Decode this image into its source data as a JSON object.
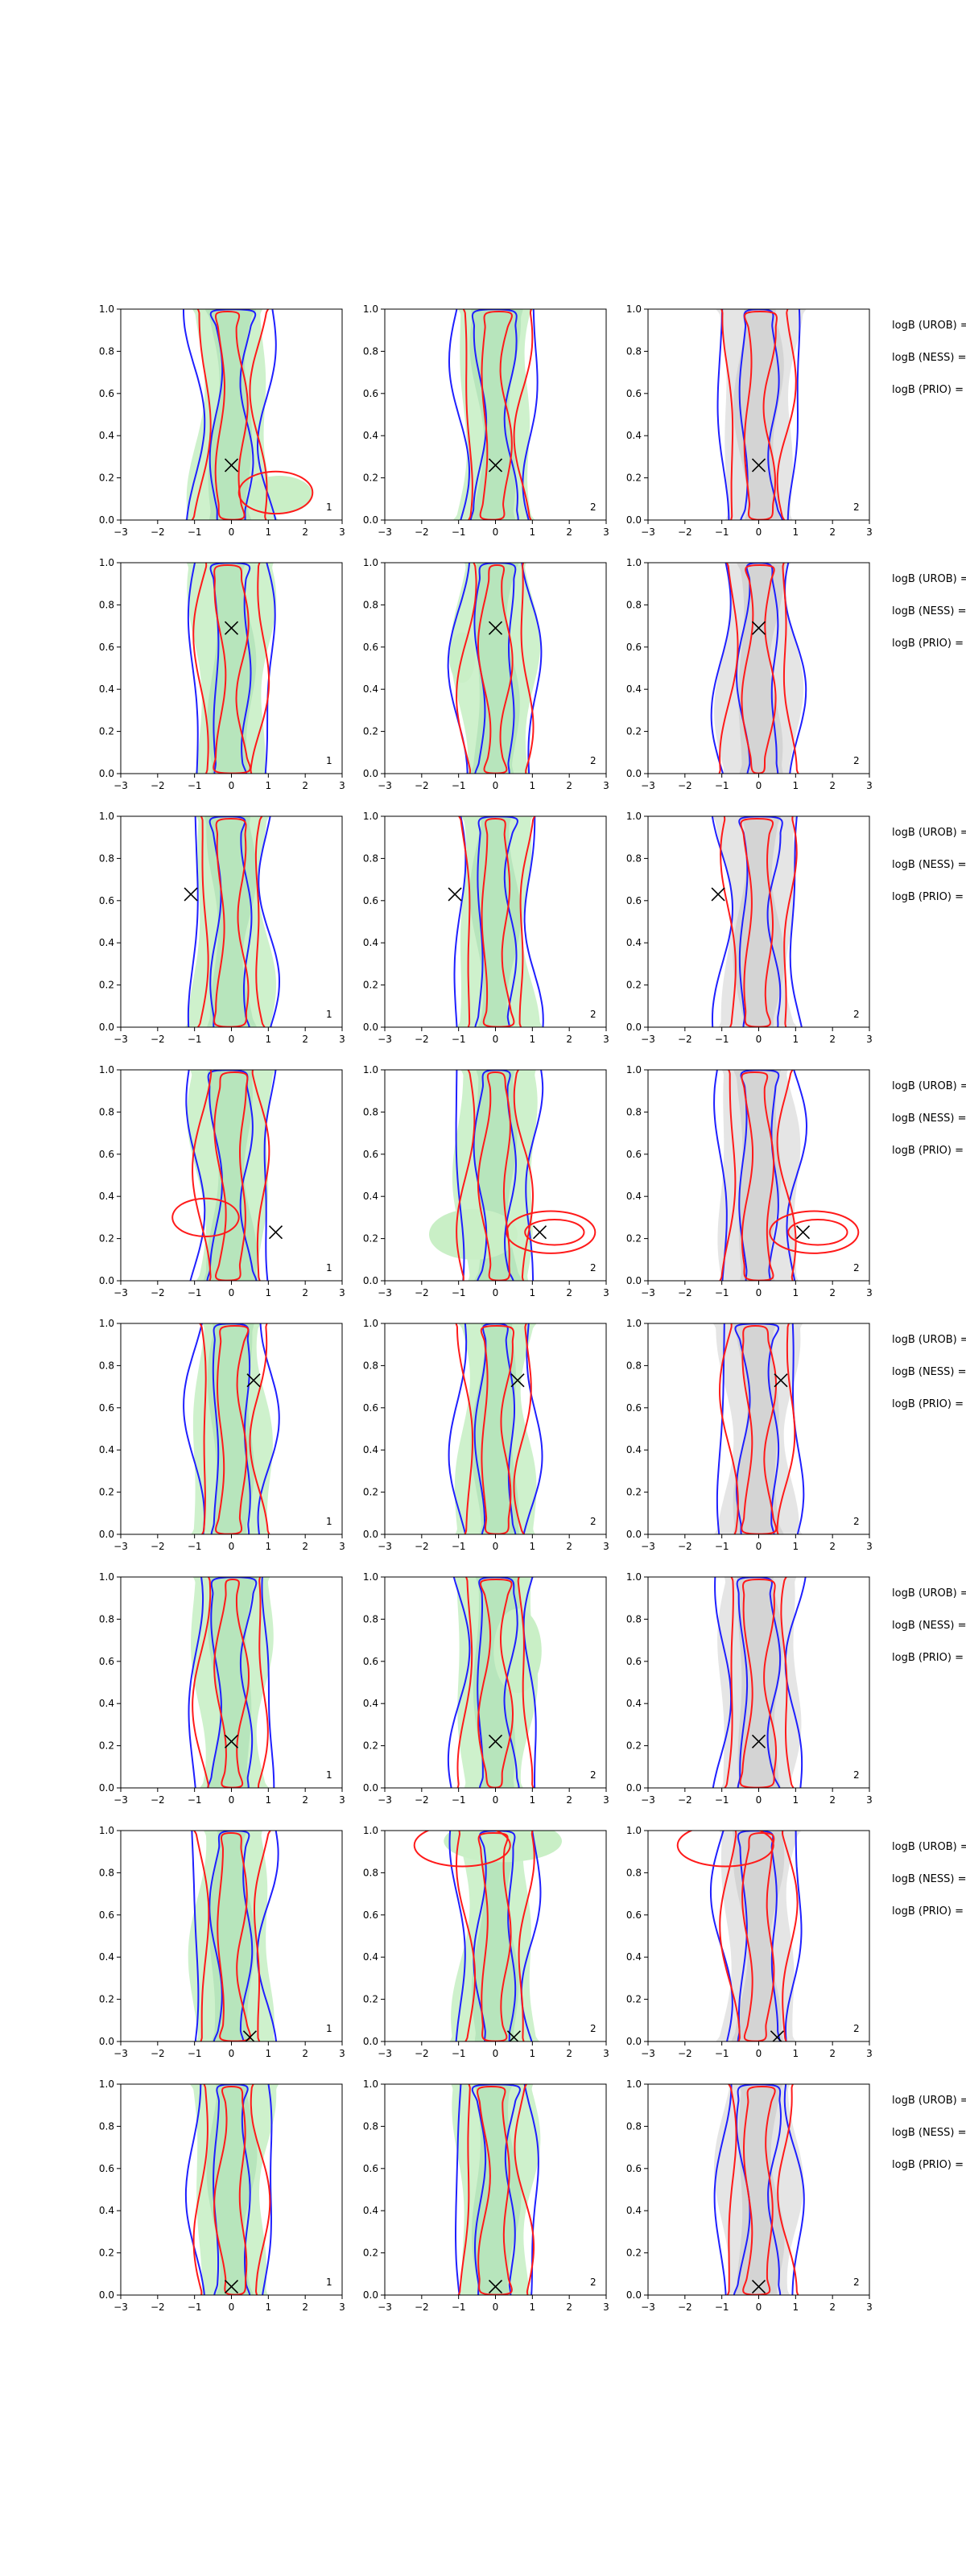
{
  "chart_data": {
    "type": "contour-grid",
    "rows": 8,
    "cols": 3,
    "xlim": [
      -3,
      3
    ],
    "ylim": [
      0,
      1
    ],
    "xticks": [
      "−3",
      "−2",
      "−1",
      "0",
      "1",
      "2",
      "3"
    ],
    "yticks": [
      "0.0",
      "0.2",
      "0.4",
      "0.6",
      "0.8",
      "1.0"
    ],
    "colors": {
      "green_fill": "#c9efc6",
      "grey_fill": "#e2e2e2",
      "blue_line": "#1f1fff",
      "red_line": "#ff1a1a",
      "marker": "#000000"
    },
    "panel_labels": [
      "1",
      "2",
      "2"
    ],
    "fill_per_col": [
      "green",
      "green",
      "grey"
    ],
    "row_markers": [
      {
        "x": 0.0,
        "y": 0.26
      },
      {
        "x": 0.0,
        "y": 0.69
      },
      {
        "x": -1.1,
        "y": 0.63
      },
      {
        "x": 1.2,
        "y": 0.23
      },
      {
        "x": 0.6,
        "y": 0.73
      },
      {
        "x": 0.0,
        "y": 0.22
      },
      {
        "x": 0.5,
        "y": 0.02
      },
      {
        "x": 0.0,
        "y": 0.04
      }
    ],
    "side_labels": [
      "logB (UROB) =",
      "logB (NESS) =",
      "logB (PRIO) ="
    ]
  }
}
